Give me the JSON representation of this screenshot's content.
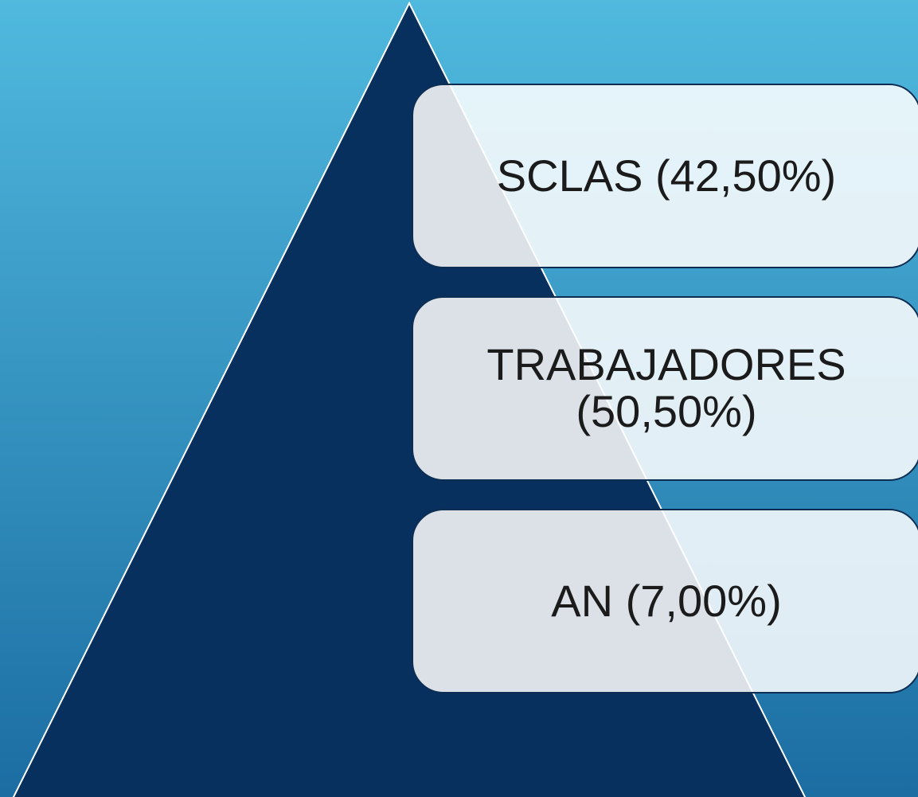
{
  "nodes": [
    {
      "label": "SCLAS (42,50%)"
    },
    {
      "label": "TRABAJADORES (50,50%)"
    },
    {
      "label": "AN (7,00%)"
    }
  ]
}
